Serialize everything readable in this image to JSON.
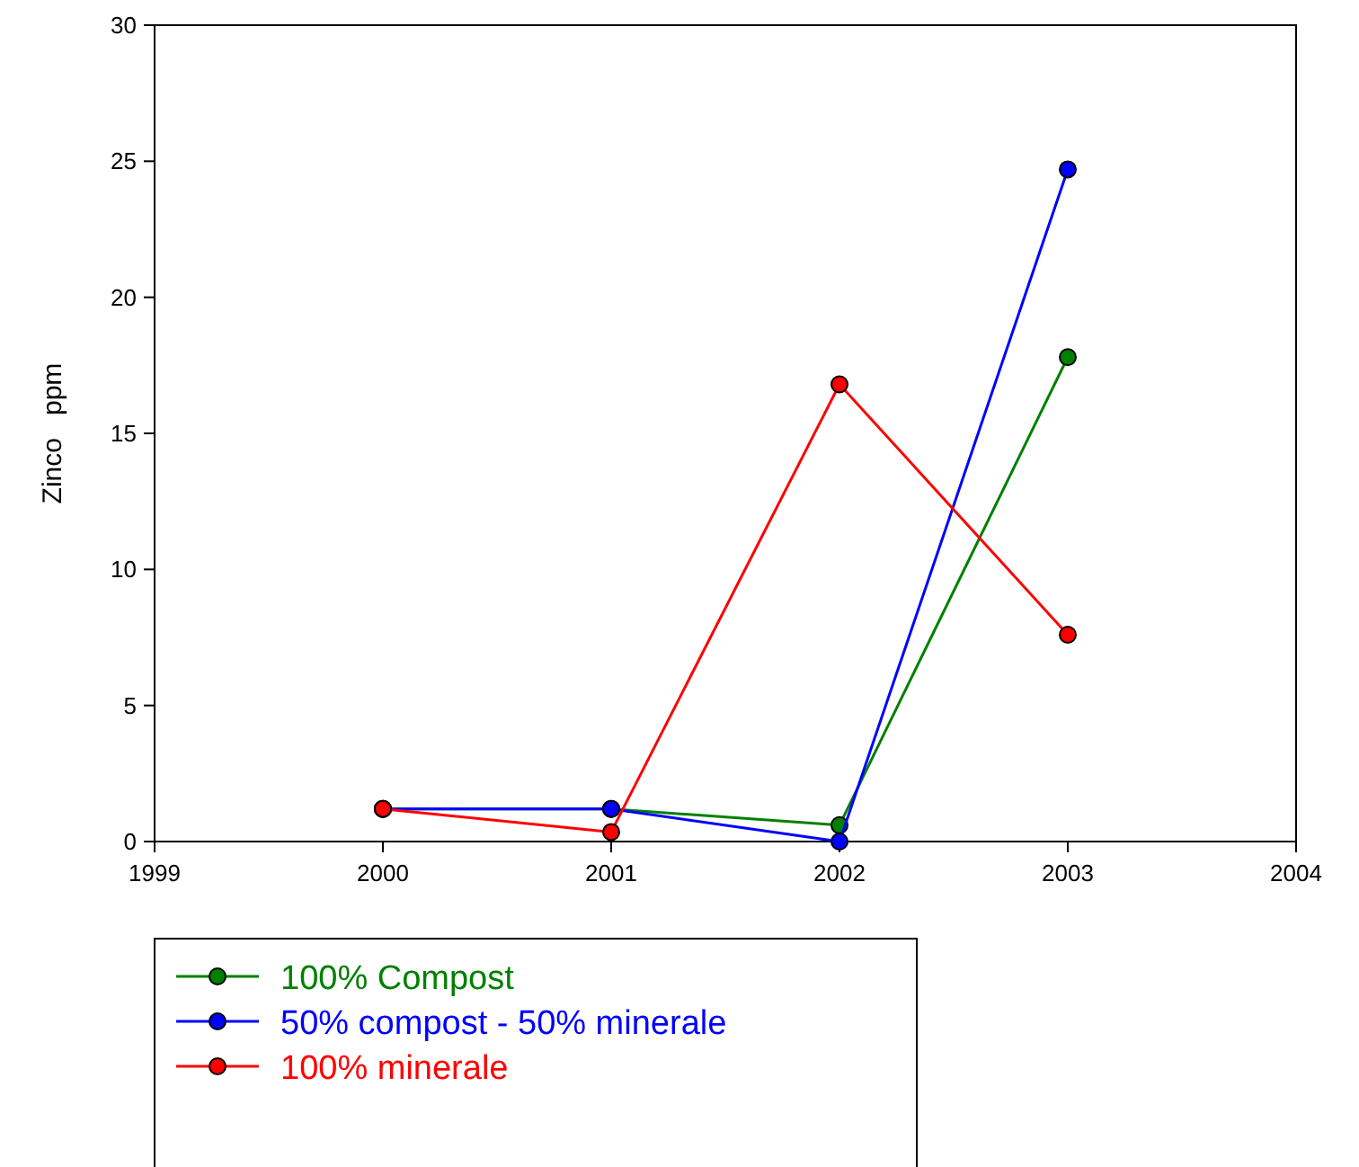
{
  "chart_data": {
    "type": "line",
    "ylabel": "Zinco   ppm",
    "x": [
      2000,
      2001,
      2002,
      2003
    ],
    "xlim": [
      1999,
      2004
    ],
    "xticks": [
      1999,
      2000,
      2001,
      2002,
      2003,
      2004
    ],
    "ylim": [
      0,
      30
    ],
    "yticks": [
      0,
      5,
      10,
      15,
      20,
      25,
      30
    ],
    "marker": "circle",
    "legend": "bottom left",
    "series": [
      {
        "name": "100% Compost",
        "color": "#008000",
        "values": [
          1.2,
          1.2,
          0.6,
          17.8
        ]
      },
      {
        "name": "50% compost - 50% minerale",
        "color": "#0000ff",
        "values": [
          1.2,
          1.2,
          0,
          24.7
        ]
      },
      {
        "name": "100% minerale",
        "color": "#ff0000",
        "values": [
          1.2,
          0.35,
          16.8,
          7.6
        ]
      }
    ]
  }
}
